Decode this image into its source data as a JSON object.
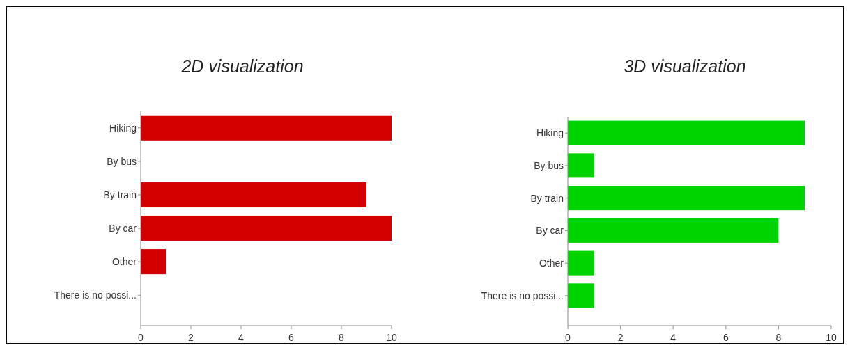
{
  "chart_data": [
    {
      "type": "bar",
      "orientation": "horizontal",
      "title": "2D visualization",
      "categories": [
        "Hiking",
        "By bus",
        "By train",
        "By car",
        "Other",
        "There is no possi..."
      ],
      "values": [
        10,
        0,
        9,
        10,
        1,
        0
      ],
      "color": "#d40000",
      "xlim": [
        0,
        10
      ],
      "xticks": [
        0,
        2,
        4,
        6,
        8,
        10
      ],
      "grid": false
    },
    {
      "type": "bar",
      "orientation": "horizontal",
      "title": "3D visualization",
      "categories": [
        "Hiking",
        "By bus",
        "By train",
        "By car",
        "Other",
        "There is no possi..."
      ],
      "values": [
        9,
        1,
        9,
        8,
        1,
        1
      ],
      "color": "#00d400",
      "xlim": [
        0,
        10
      ],
      "xticks": [
        0,
        2,
        4,
        6,
        8,
        10
      ],
      "grid": false
    }
  ]
}
